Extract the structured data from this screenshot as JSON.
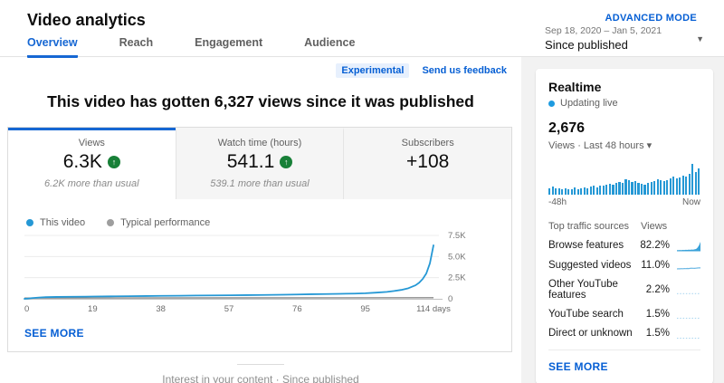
{
  "header": {
    "title": "Video analytics",
    "advanced_mode": "ADVANCED MODE"
  },
  "tabs": [
    {
      "label": "Overview",
      "active": true
    },
    {
      "label": "Reach",
      "active": false
    },
    {
      "label": "Engagement",
      "active": false
    },
    {
      "label": "Audience",
      "active": false
    }
  ],
  "date_selector": {
    "range": "Sep 18, 2020 – Jan 5, 2021",
    "label": "Since published"
  },
  "feedback": {
    "experimental": "Experimental",
    "send": "Send us feedback"
  },
  "headline": "This video has gotten 6,327 views since it was published",
  "metrics": [
    {
      "label": "Views",
      "value": "6.3K",
      "trend": "up",
      "delta": "6.2K more than usual",
      "active": true
    },
    {
      "label": "Watch time (hours)",
      "value": "541.1",
      "trend": "up",
      "delta": "539.1 more than usual",
      "active": false
    },
    {
      "label": "Subscribers",
      "value": "+108",
      "trend": "",
      "delta": "",
      "active": false
    }
  ],
  "legend": [
    {
      "label": "This video",
      "color": "#2598d5"
    },
    {
      "label": "Typical performance",
      "color": "#9e9e9e"
    }
  ],
  "main_card": {
    "see_more": "SEE MORE"
  },
  "caption": "Interest in your content · Since published",
  "sidebar": {
    "realtime": {
      "title": "Realtime",
      "status": "Updating live",
      "count": "2,676",
      "subtitle": "Views · Last 48 hours ▾",
      "axis_left": "-48h",
      "axis_right": "Now"
    },
    "traffic": {
      "header_left": "Top traffic sources",
      "header_right": "Views",
      "rows": [
        {
          "label": "Browse features",
          "value": "82.2%"
        },
        {
          "label": "Suggested videos",
          "value": "11.0%"
        },
        {
          "label": "Other YouTube features",
          "value": "2.2%"
        },
        {
          "label": "YouTube search",
          "value": "1.5%"
        },
        {
          "label": "Direct or unknown",
          "value": "1.5%"
        }
      ],
      "see_more": "SEE MORE"
    }
  },
  "colors": {
    "accent_blue": "#065fd4",
    "tab_blue": "#1667d3",
    "chart_blue": "#2598d5",
    "trend_green": "#188038",
    "sidebar_bg": "#f2f2f2"
  },
  "chart_data": [
    {
      "type": "line",
      "title": "Interest in your content",
      "xlabel": "days",
      "ylabel": "Views",
      "xlim": [
        0,
        114
      ],
      "ylim": [
        0,
        7500
      ],
      "grid": true,
      "legend_position": "top-left",
      "x_ticks": [
        {
          "day": 0,
          "label": "0"
        },
        {
          "day": 19,
          "label": "19"
        },
        {
          "day": 38,
          "label": "38"
        },
        {
          "day": 57,
          "label": "57"
        },
        {
          "day": 76,
          "label": "76"
        },
        {
          "day": 95,
          "label": "95"
        },
        {
          "day": 114,
          "label": "114 days"
        }
      ],
      "y_ticks": [
        {
          "value": 0,
          "label": "0"
        },
        {
          "value": 2500,
          "label": "2.5K"
        },
        {
          "value": 5000,
          "label": "5.0K"
        },
        {
          "value": 7500,
          "label": "7.5K"
        }
      ],
      "series": [
        {
          "name": "This video",
          "color": "#2598d5",
          "x": [
            0,
            1,
            2,
            4,
            6,
            9,
            13,
            17,
            19,
            24,
            29,
            34,
            38,
            43,
            48,
            53,
            57,
            62,
            67,
            72,
            76,
            80,
            84,
            88,
            92,
            95,
            98,
            101,
            103,
            105,
            107,
            109,
            110,
            111,
            112,
            113,
            114
          ],
          "y": [
            0,
            30,
            80,
            150,
            195,
            220,
            240,
            255,
            265,
            290,
            310,
            330,
            345,
            365,
            385,
            400,
            415,
            435,
            455,
            480,
            505,
            540,
            565,
            590,
            620,
            660,
            730,
            820,
            920,
            1050,
            1250,
            1600,
            1900,
            2350,
            3000,
            4200,
            6327
          ]
        },
        {
          "name": "Typical performance",
          "color": "#8a8a8a",
          "x": [
            0,
            114
          ],
          "y": [
            25,
            60
          ]
        }
      ]
    },
    {
      "type": "bar",
      "title": "Realtime views · Last 48 hours",
      "x_ticks": [
        "-48h",
        "Now"
      ],
      "ylim": [
        0,
        100
      ],
      "values": [
        20,
        26,
        22,
        20,
        18,
        22,
        17,
        19,
        23,
        19,
        21,
        25,
        22,
        26,
        28,
        24,
        30,
        28,
        32,
        36,
        33,
        38,
        42,
        38,
        50,
        46,
        40,
        44,
        38,
        35,
        33,
        37,
        41,
        45,
        50,
        46,
        43,
        48,
        54,
        58,
        52,
        56,
        63,
        60,
        68,
        100,
        74,
        84
      ]
    },
    {
      "type": "line",
      "title": "Traffic source trends (last 48 hours)",
      "series": [
        {
          "name": "Browse features",
          "style": "area",
          "values": [
            8,
            7,
            9,
            8,
            10,
            9,
            11,
            10,
            12,
            11,
            14,
            13,
            16,
            20,
            35,
            60,
            100
          ]
        },
        {
          "name": "Suggested videos",
          "style": "line",
          "values": [
            10,
            12,
            11,
            13,
            12,
            14,
            13,
            15,
            14,
            16,
            18,
            17,
            16,
            18,
            20,
            22,
            21
          ]
        },
        {
          "name": "Other YouTube features",
          "style": "dotted",
          "values": [
            6,
            7,
            6,
            7,
            6,
            7,
            6,
            7,
            6,
            7,
            6,
            7,
            6,
            7,
            6,
            7,
            6
          ]
        },
        {
          "name": "YouTube search",
          "style": "dotted",
          "values": [
            5,
            6,
            5,
            6,
            5,
            6,
            5,
            6,
            5,
            6,
            5,
            6,
            5,
            6,
            5,
            6,
            5
          ]
        },
        {
          "name": "Direct or unknown",
          "style": "dotted",
          "values": [
            4,
            5,
            4,
            6,
            4,
            5,
            4,
            6,
            4,
            5,
            4,
            6,
            4,
            5,
            4,
            6,
            4
          ]
        }
      ]
    }
  ]
}
